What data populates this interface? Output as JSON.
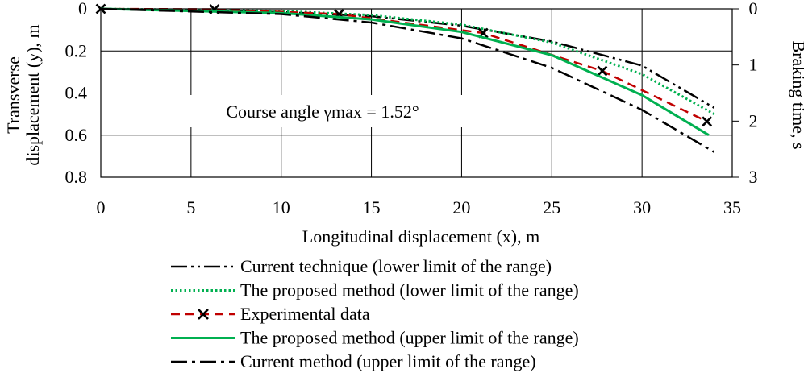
{
  "chart_data": {
    "type": "line",
    "xlabel": "Longitudinal displacement (x), m",
    "ylabel_lines": [
      "Transverse",
      "displacement (y), m"
    ],
    "y2label": "Braking time, s",
    "xlim": [
      0,
      35
    ],
    "x_ticks": [
      0,
      5,
      10,
      15,
      20,
      25,
      30,
      35
    ],
    "ylim": [
      0,
      0.8
    ],
    "y_ticks": [
      0,
      0.2,
      0.4,
      0.6,
      0.8
    ],
    "y_tick_labels": [
      "0",
      "0.2",
      "0.4",
      "0.6",
      "0.8"
    ],
    "y2lim": [
      0,
      3
    ],
    "y2_ticks": [
      0,
      1,
      2,
      3
    ],
    "y_inverted": true,
    "grid": true,
    "annotation": "Course angle γmax = 1.52°",
    "legend_position": "bottom",
    "series": [
      {
        "name": "Current technique (lower limit of the range)",
        "style": "long-dash-dot-dot",
        "color": "#000000",
        "points": [
          [
            0,
            0
          ],
          [
            10,
            0.015
          ],
          [
            15,
            0.035
          ],
          [
            20,
            0.08
          ],
          [
            25,
            0.155
          ],
          [
            30,
            0.27
          ],
          [
            34,
            0.47
          ]
        ]
      },
      {
        "name": "The proposed method (lower limit of the range)",
        "style": "dotted",
        "color": "#00b050",
        "points": [
          [
            0,
            0
          ],
          [
            10,
            0.01
          ],
          [
            15,
            0.03
          ],
          [
            20,
            0.075
          ],
          [
            25,
            0.16
          ],
          [
            30,
            0.31
          ],
          [
            34,
            0.5
          ]
        ]
      },
      {
        "name": "Experimental data",
        "style": "dashed-cross",
        "color": "#c00000",
        "marker_color": "#000000",
        "points": [
          [
            0,
            0
          ],
          [
            6.3,
            0.002
          ],
          [
            13.2,
            0.025
          ],
          [
            21.2,
            0.115
          ],
          [
            27.8,
            0.295
          ],
          [
            33.6,
            0.535
          ]
        ]
      },
      {
        "name": "The proposed method (upper limit of the range)",
        "style": "solid",
        "color": "#00b050",
        "points": [
          [
            0,
            0
          ],
          [
            10,
            0.02
          ],
          [
            15,
            0.05
          ],
          [
            20,
            0.11
          ],
          [
            25,
            0.22
          ],
          [
            30,
            0.41
          ],
          [
            33.7,
            0.6
          ]
        ]
      },
      {
        "name": "Current method (upper limit of the range)",
        "style": "long-dash-dot",
        "color": "#000000",
        "points": [
          [
            0,
            0
          ],
          [
            10,
            0.025
          ],
          [
            15,
            0.065
          ],
          [
            20,
            0.14
          ],
          [
            25,
            0.28
          ],
          [
            30,
            0.48
          ],
          [
            34,
            0.68
          ]
        ]
      }
    ]
  }
}
